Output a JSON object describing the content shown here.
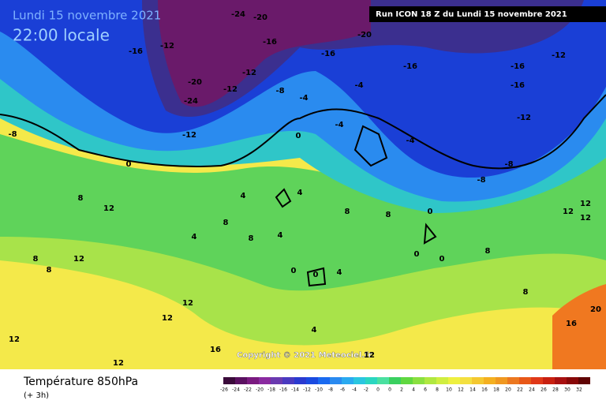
{
  "header": {
    "date": "Lundi 15 novembre 2021",
    "time": "22:00 locale",
    "run": "Run ICON 18 Z du Lundi 15 novembre 2021"
  },
  "copyright": "Copyright © 2021 Meteociel.fr",
  "footer": {
    "title": "Température 850hPa",
    "subtitle": "(+ 3h)"
  },
  "legend": {
    "labels": [
      "-26",
      "-24",
      "-22",
      "-20",
      "-18",
      "-16",
      "-14",
      "-12",
      "-10",
      "-8",
      "-6",
      "-4",
      "-2",
      "0",
      "0",
      "2",
      "4",
      "6",
      "8",
      "10",
      "12",
      "14",
      "16",
      "18",
      "20",
      "22",
      "24",
      "26",
      "28",
      "30",
      "32"
    ]
  },
  "map_labels": [
    "-24",
    "-20",
    "-20",
    "-16",
    "-12",
    "-16",
    "-16",
    "-16",
    "-16",
    "-12",
    "-16",
    "-12",
    "-24",
    "-20",
    "-12",
    "-12",
    "-12",
    "-8",
    "-4",
    "-4",
    "-4",
    "0",
    "0",
    "-4",
    "-8",
    "-8",
    "0",
    "4",
    "4",
    "8",
    "8",
    "12",
    "8",
    "8",
    "8",
    "12",
    "8",
    "4",
    "8",
    "4",
    "0",
    "0",
    "4",
    "0",
    "0",
    "8",
    "12",
    "12",
    "8",
    "12",
    "12",
    "12",
    "16",
    "12",
    "16",
    "20",
    "4",
    "12",
    "-8",
    "12"
  ]
}
